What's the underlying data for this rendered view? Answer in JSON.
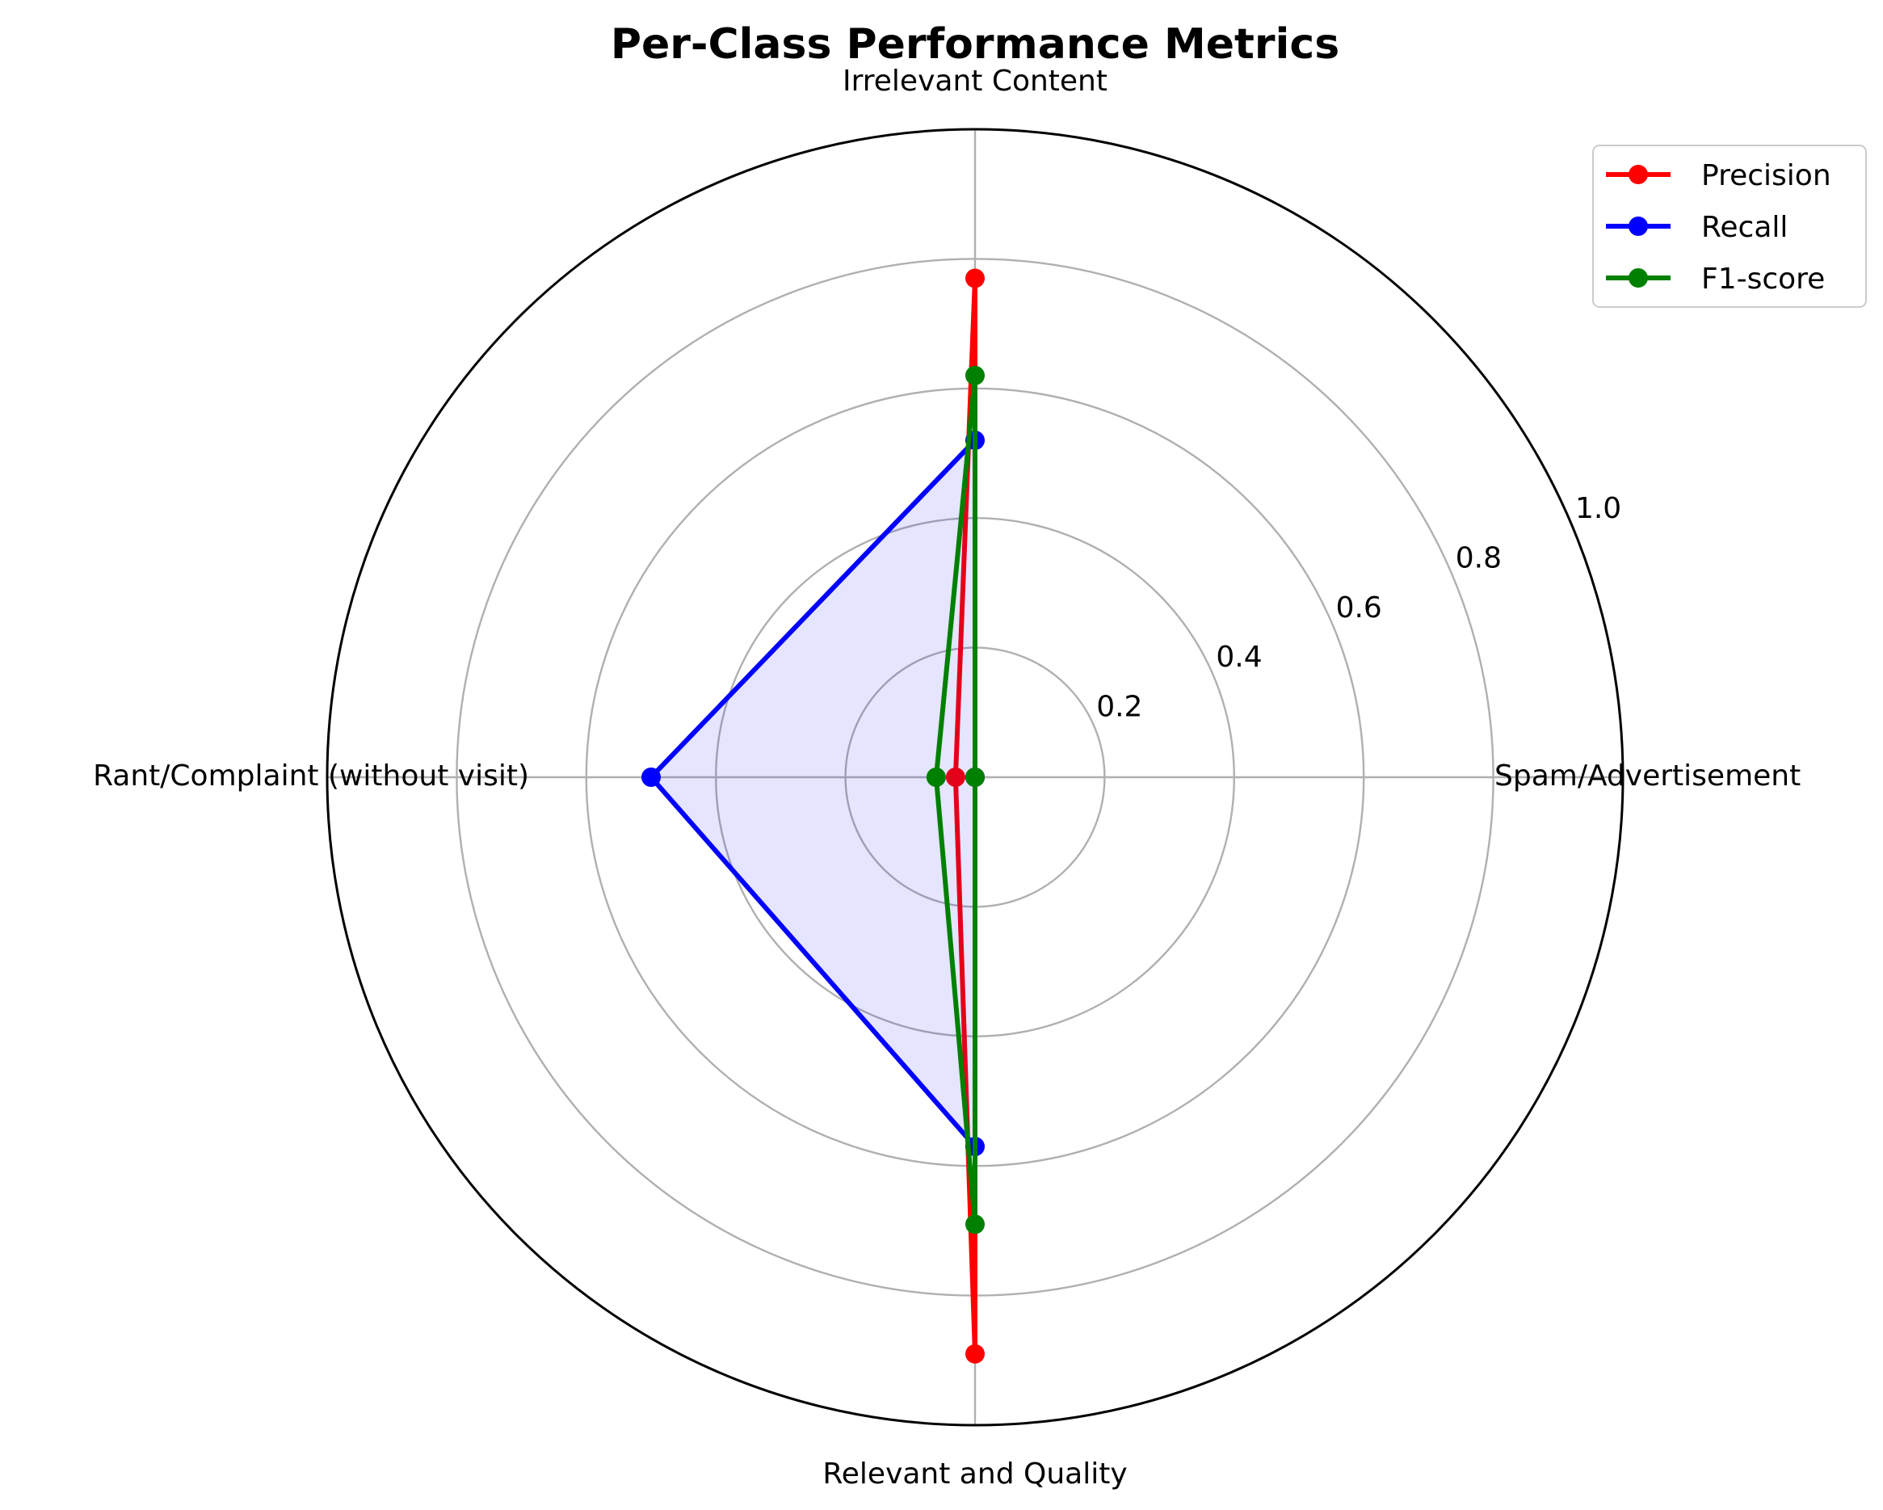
{
  "chart_data": {
    "type": "radar",
    "title": "Per-Class Performance Metrics",
    "categories": [
      "Spam/Advertisement",
      "Irrelevant Content",
      "Rant/Complaint (without visit)",
      "Relevant and Quality"
    ],
    "rlim": [
      0,
      1.0
    ],
    "rticks": [
      0.2,
      0.4,
      0.6,
      0.8,
      1.0
    ],
    "rtick_labels": [
      "0.2",
      "0.4",
      "0.6",
      "0.8",
      "1.0"
    ],
    "grid": true,
    "legend_position": "top-right",
    "series": [
      {
        "name": "Precision",
        "color": "#ff0000",
        "values": [
          0.0,
          0.77,
          0.03,
          0.89
        ],
        "fill": false
      },
      {
        "name": "Recall",
        "color": "#0000ff",
        "values": [
          0.0,
          0.52,
          0.5,
          0.57
        ],
        "fill": true,
        "fill_color": "#0000ff",
        "fill_opacity": 0.1
      },
      {
        "name": "F1-score",
        "color": "#008000",
        "values": [
          0.0,
          0.62,
          0.06,
          0.69
        ],
        "fill": false
      }
    ]
  }
}
